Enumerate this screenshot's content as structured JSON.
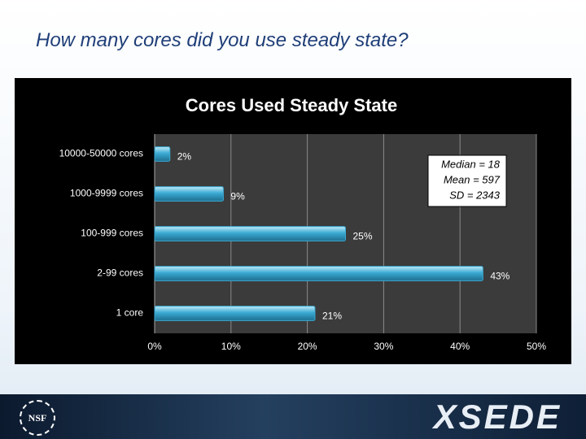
{
  "slide_title": "How many cores did you use steady state?",
  "chart_data": {
    "type": "bar",
    "orientation": "horizontal",
    "title": "Cores Used Steady State",
    "categories": [
      "10000-50000 cores",
      "1000-9999 cores",
      "100-999 cores",
      "2-99 cores",
      "1 core"
    ],
    "values": [
      2,
      9,
      25,
      43,
      21
    ],
    "value_labels": [
      "2%",
      "9%",
      "25%",
      "43%",
      "21%"
    ],
    "color": "#3aaad3",
    "xlim": [
      0,
      50
    ],
    "xticks": [
      {
        "value": 0,
        "label": "0%"
      },
      {
        "value": 10,
        "label": "10%"
      },
      {
        "value": 20,
        "label": "20%"
      },
      {
        "value": 30,
        "label": "30%"
      },
      {
        "value": 40,
        "label": "40%"
      },
      {
        "value": 50,
        "label": "50%"
      }
    ],
    "grid": true,
    "annotations": [
      "Median = 18",
      "Mean = 597",
      "SD = 2343"
    ]
  },
  "footer": {
    "badge": "NSF",
    "logo": "XSEDE"
  }
}
